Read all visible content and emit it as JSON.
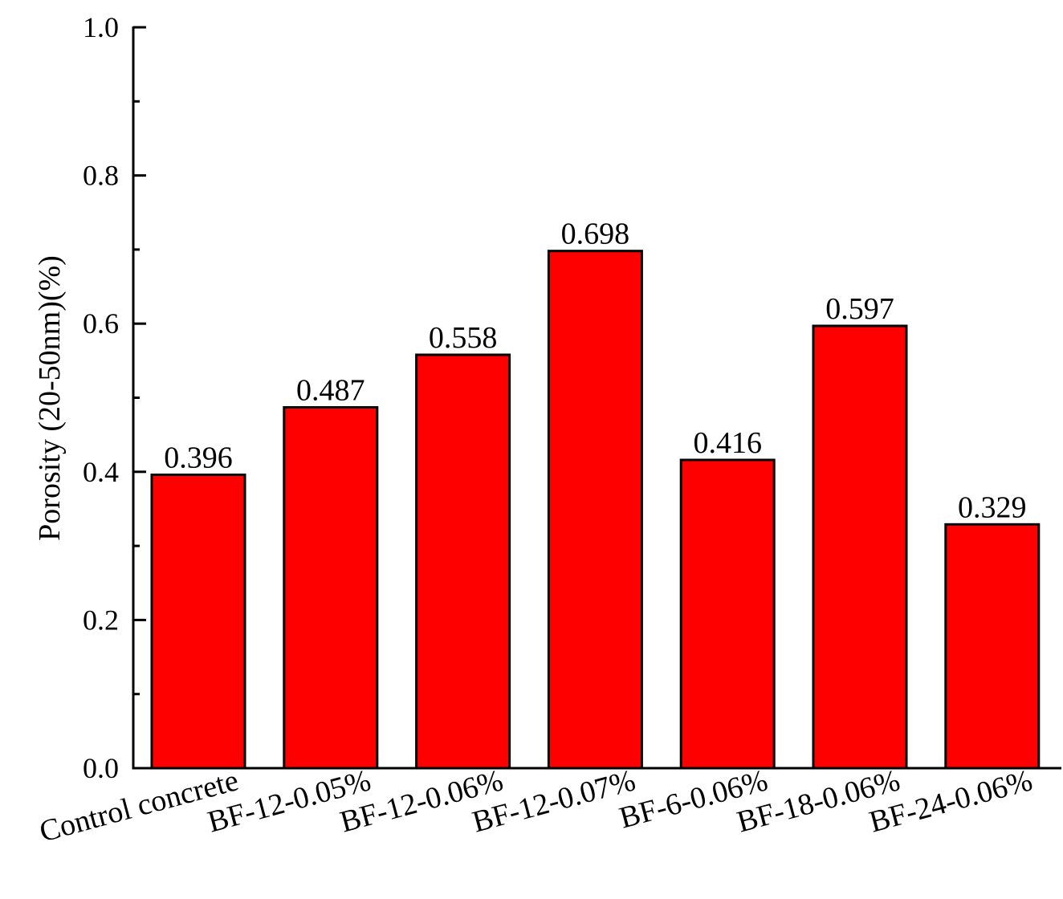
{
  "chart_data": {
    "type": "bar",
    "title": "",
    "xlabel": "",
    "ylabel": "Porosity (20-50nm)(%)",
    "ylim": [
      0.0,
      1.0
    ],
    "y_major_ticks": [
      "0.0",
      "0.2",
      "0.4",
      "0.6",
      "0.8",
      "1.0"
    ],
    "y_minor_step": 0.1,
    "grid": false,
    "legend": "none",
    "bar_color": "#ff0000",
    "bar_edge_color": "#000000",
    "categories": [
      "Control concrete",
      "BF-12-0.05%",
      "BF-12-0.06%",
      "BF-12-0.07%",
      "BF-6-0.06%",
      "BF-18-0.06%",
      "BF-24-0.06%"
    ],
    "values": [
      0.396,
      0.487,
      0.558,
      0.698,
      0.416,
      0.597,
      0.329
    ],
    "value_labels": [
      "0.396",
      "0.487",
      "0.558",
      "0.698",
      "0.416",
      "0.597",
      "0.329"
    ],
    "x_label_rotation": "slanted"
  }
}
